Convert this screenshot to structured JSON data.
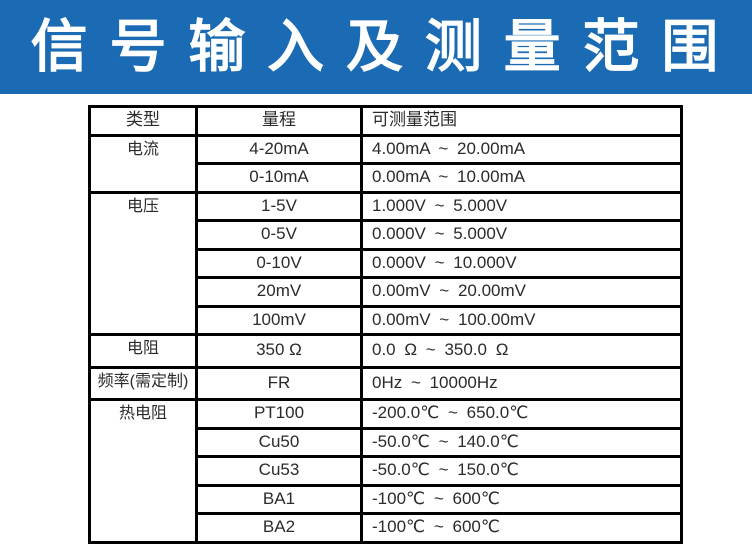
{
  "banner": {
    "title": "信 号 输 入 及 测 量 范 围",
    "bg_color": "#1a6bb3",
    "text_color": "#ffffff"
  },
  "table": {
    "headers": [
      "类型",
      "量程",
      "可测量范围"
    ],
    "groups": [
      {
        "label": "电流",
        "rows": [
          {
            "range": "4-20mA",
            "measure": "4.00mA ~ 20.00mA"
          },
          {
            "range": "0-10mA",
            "measure": "0.00mA ~ 10.00mA"
          }
        ]
      },
      {
        "label": "电压",
        "rows": [
          {
            "range": "1-5V",
            "measure": "1.000V ~ 5.000V"
          },
          {
            "range": "0-5V",
            "measure": "0.000V ~ 5.000V"
          },
          {
            "range": "0-10V",
            "measure": "0.000V ~ 10.000V"
          },
          {
            "range": "20mV",
            "measure": "0.00mV ~ 20.00mV"
          },
          {
            "range": "100mV",
            "measure": "0.00mV ~ 100.00mV"
          }
        ]
      },
      {
        "label": "电阻",
        "rows": [
          {
            "range": "350 Ω",
            "measure": "0.0 Ω ~ 350.0 Ω"
          }
        ]
      },
      {
        "label": "频率(需定制)",
        "rows": [
          {
            "range": "FR",
            "measure": "0Hz ~ 10000Hz"
          }
        ]
      },
      {
        "label": "热电阻",
        "rows": [
          {
            "range": "PT100",
            "measure": "-200.0℃ ~ 650.0℃"
          },
          {
            "range": "Cu50",
            "measure": "-50.0℃ ~ 140.0℃"
          },
          {
            "range": "Cu53",
            "measure": "-50.0℃ ~ 150.0℃"
          },
          {
            "range": "BA1",
            "measure": "-100℃ ~ 600℃"
          },
          {
            "range": "BA2",
            "measure": "-100℃ ~ 600℃"
          }
        ]
      }
    ]
  }
}
